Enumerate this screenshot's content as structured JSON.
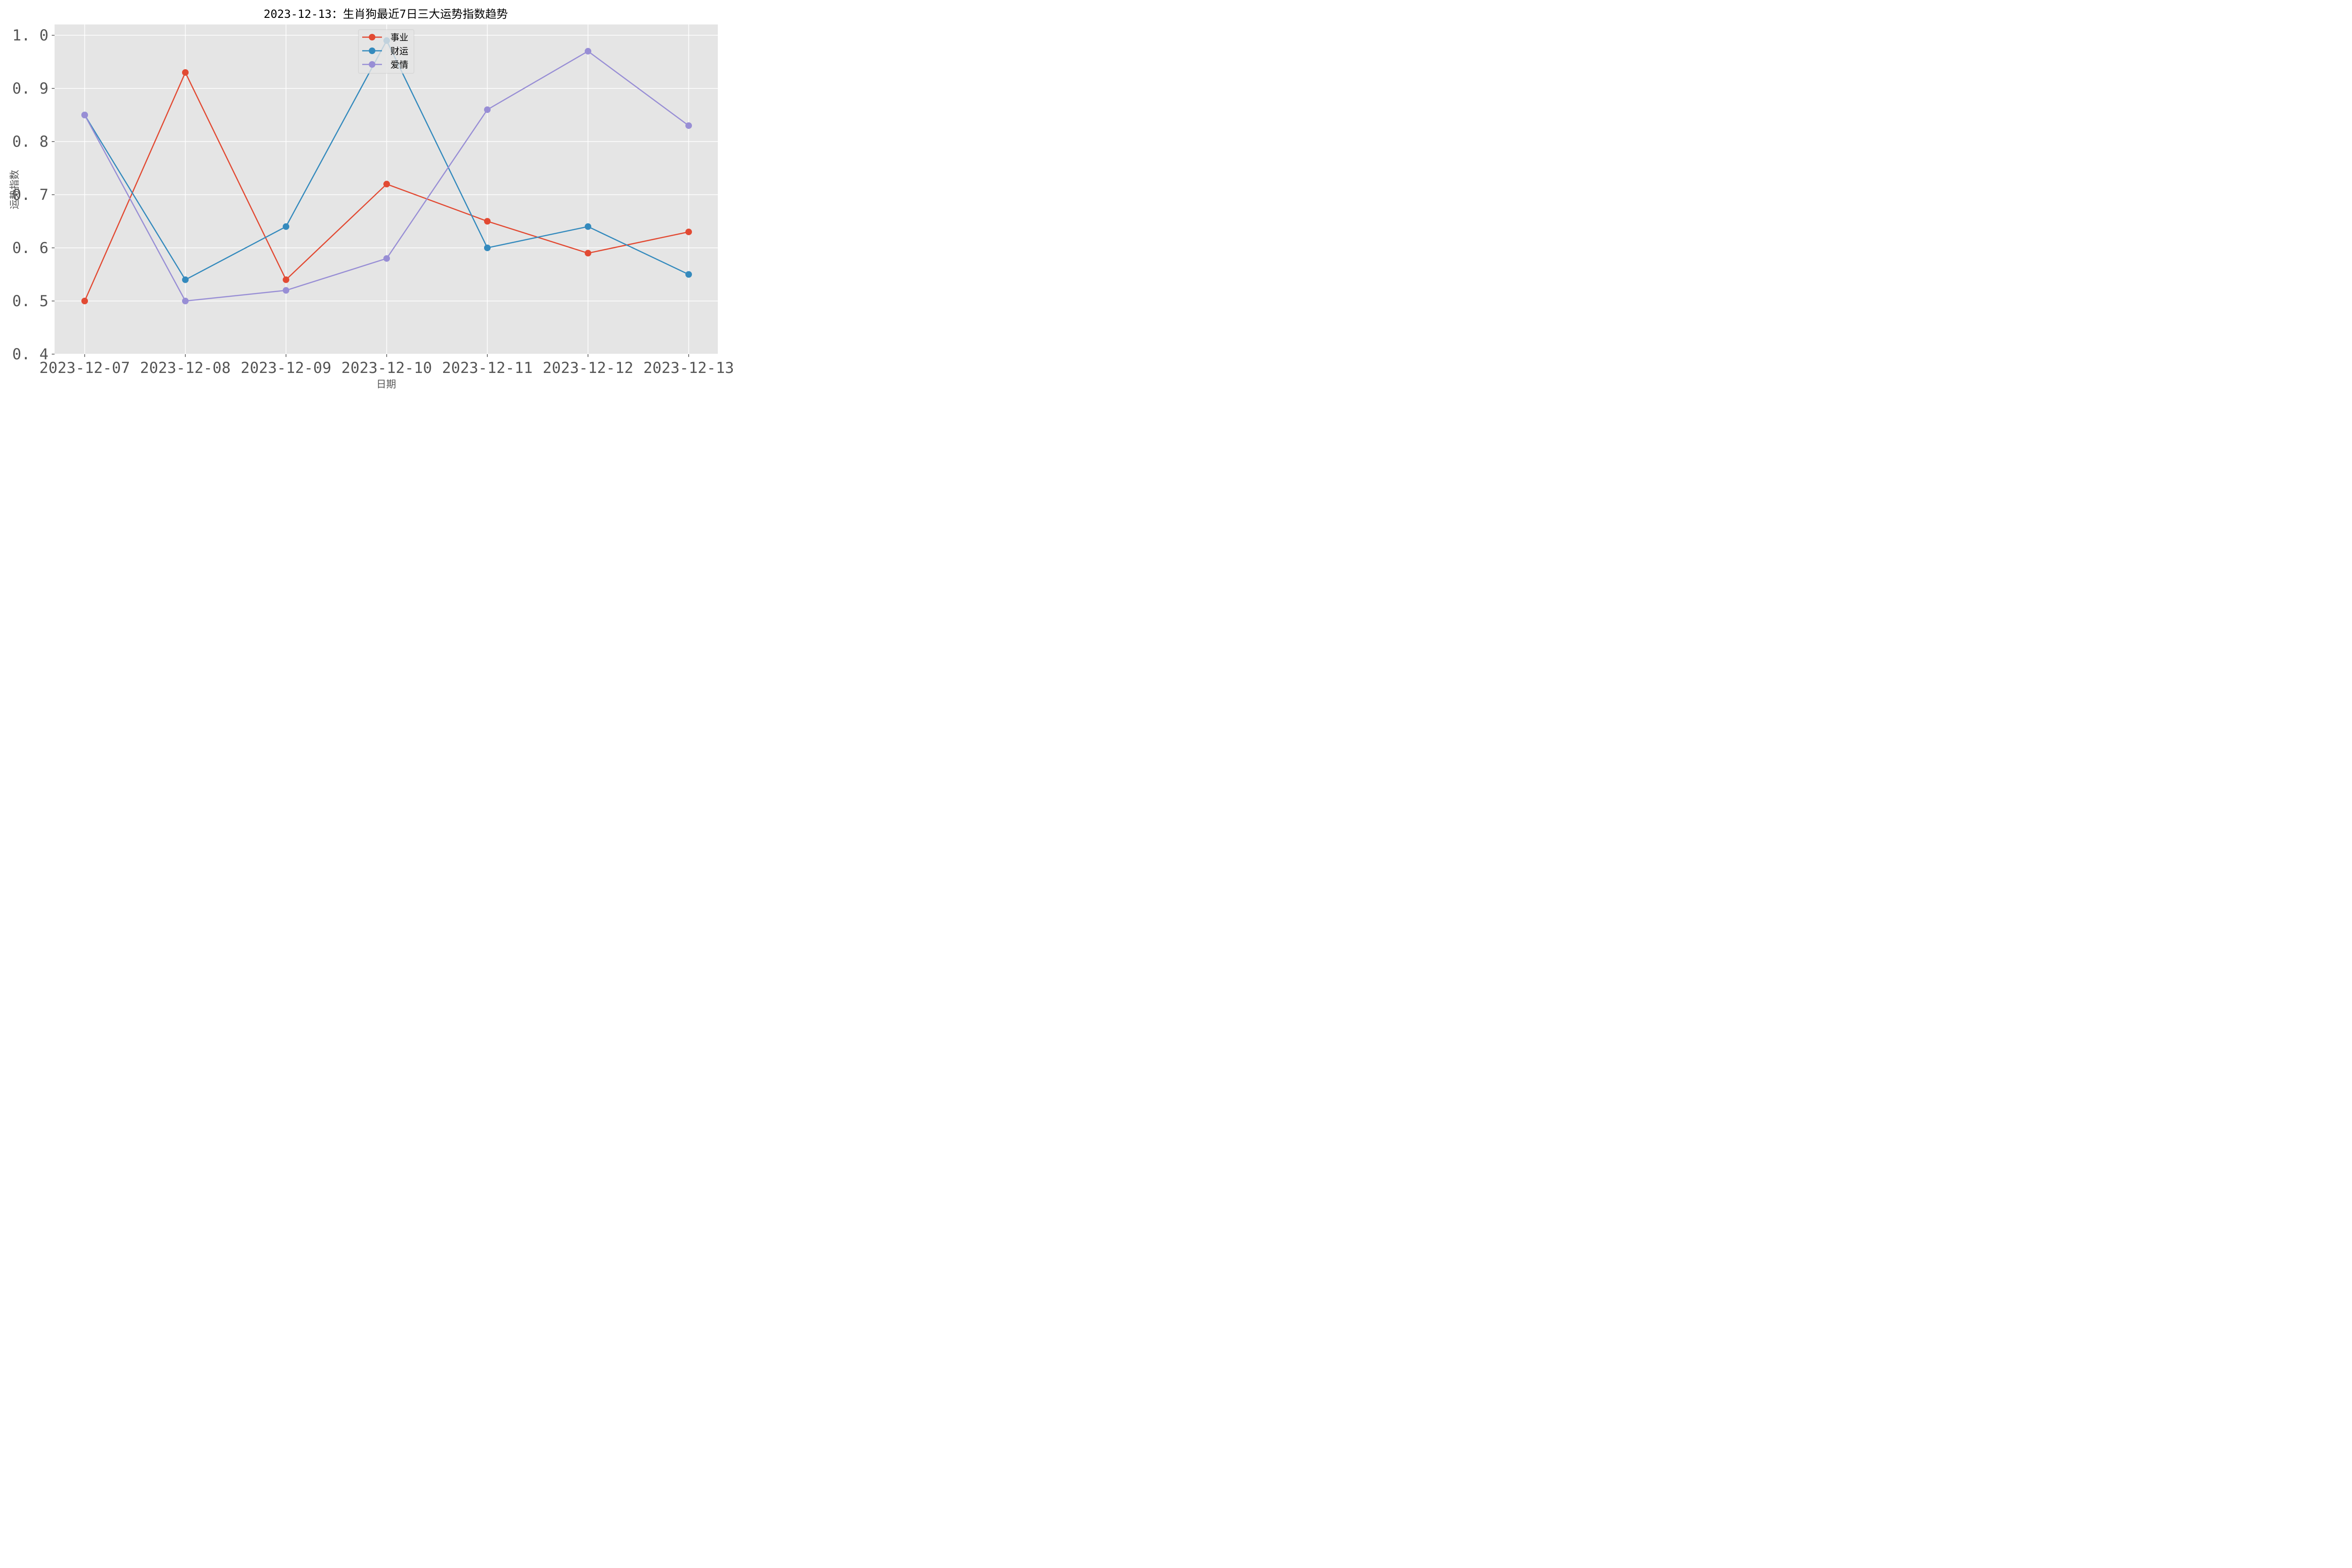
{
  "chart_data": {
    "type": "line",
    "title": "2023-12-13：生肖狗最近7日三大运势指数趋势",
    "xlabel": "日期",
    "ylabel": "运势指数",
    "categories": [
      "2023-12-07",
      "2023-12-08",
      "2023-12-09",
      "2023-12-10",
      "2023-12-11",
      "2023-12-12",
      "2023-12-13"
    ],
    "series": [
      {
        "name": "事业",
        "color": "#E24A33",
        "values": [
          0.5,
          0.93,
          0.54,
          0.72,
          0.65,
          0.59,
          0.63
        ]
      },
      {
        "name": "财运",
        "color": "#348ABD",
        "values": [
          0.85,
          0.54,
          0.64,
          0.99,
          0.6,
          0.64,
          0.55
        ]
      },
      {
        "name": "爱情",
        "color": "#988ED5",
        "values": [
          0.85,
          0.5,
          0.52,
          0.58,
          0.86,
          0.97,
          0.83
        ]
      }
    ],
    "ylim": [
      0.4,
      1.02
    ],
    "yticks": [
      "0.4",
      "0.5",
      "0.6",
      "0.7",
      "0.8",
      "0.9",
      "1.0"
    ],
    "grid": true,
    "legend_position": "upper center"
  }
}
